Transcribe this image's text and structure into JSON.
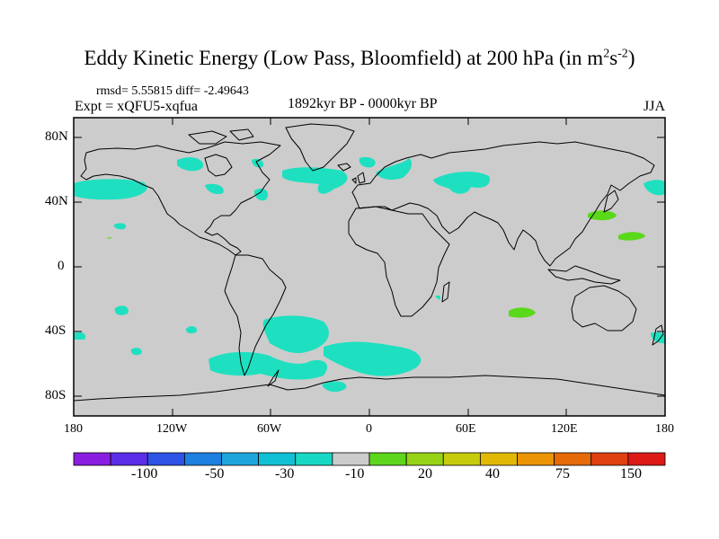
{
  "title": {
    "prefix": "Eddy Kinetic Energy (Low Pass, Bloomfield) at 200 hPa (in m",
    "sup1": "2",
    "mid": "s",
    "sup2": "-2",
    "suffix": ")"
  },
  "stats": "rmsd= 5.55815 diff= -2.49643",
  "expt": "Expt = xQFU5-xqfua",
  "period": "1892kyr BP - 0000kyr BP",
  "season": "JJA",
  "y_axis": [
    "80N",
    "40N",
    "0",
    "40S",
    "80S"
  ],
  "x_axis": [
    "180",
    "120W",
    "60W",
    "0",
    "60E",
    "120E",
    "180"
  ],
  "colorbar": {
    "labels": [
      "-100",
      "-50",
      "-30",
      "-10",
      "20",
      "40",
      "75",
      "150"
    ],
    "colors": [
      "#8a1ee0",
      "#5a2ee8",
      "#2e52e6",
      "#1e80e0",
      "#1ea6dc",
      "#12c0d6",
      "#18d8c4",
      "#cccccc",
      "#5ed61e",
      "#96d216",
      "#c6cc0c",
      "#e2b806",
      "#ea9406",
      "#e66a08",
      "#e04010",
      "#dc1a16"
    ]
  },
  "colors": {
    "ocean": "#cccccc",
    "cyan_anomaly": "#1ee0c0",
    "green_anomaly": "#5ad81a",
    "coast": "#000000"
  }
}
